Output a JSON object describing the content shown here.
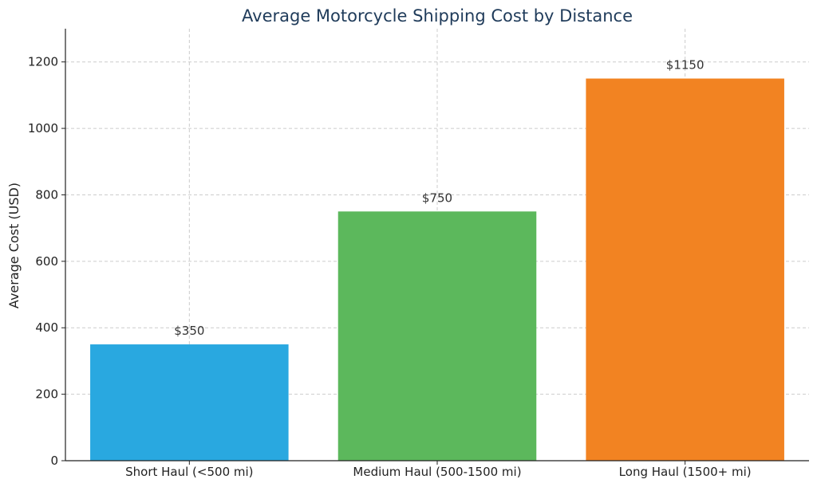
{
  "chart_data": {
    "type": "bar",
    "title": "Average Motorcycle Shipping Cost by Distance",
    "xlabel": "",
    "ylabel": "Average Cost (USD)",
    "categories": [
      "Short Haul (<500 mi)",
      "Medium Haul (500-1500 mi)",
      "Long Haul (1500+ mi)"
    ],
    "values": [
      350,
      750,
      1150
    ],
    "data_labels": [
      "$350",
      "$750",
      "$1150"
    ],
    "colors": [
      "#29a8e0",
      "#5cb85c",
      "#f28322"
    ],
    "ylim": [
      0,
      1300
    ],
    "yticks": [
      0,
      200,
      400,
      600,
      800,
      1000,
      1200
    ],
    "grid": true,
    "legend": "none"
  }
}
